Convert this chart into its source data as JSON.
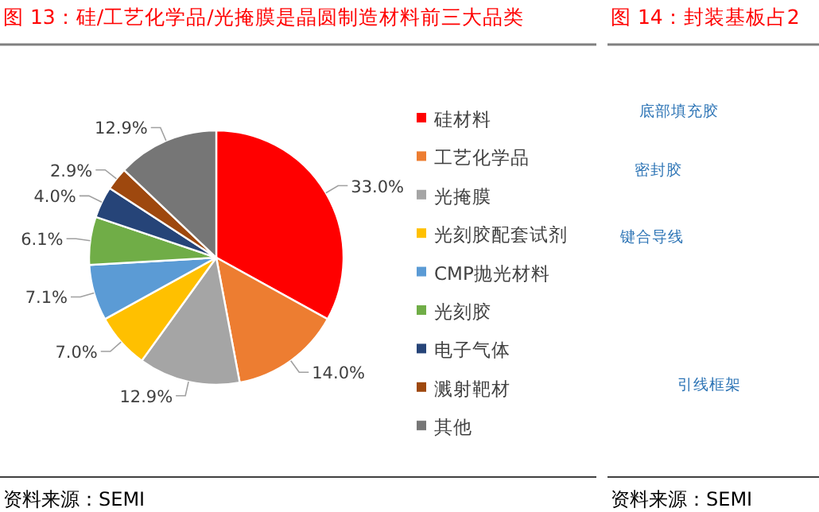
{
  "chart_data": [
    {
      "type": "pie",
      "title": "图 13：硅/工艺化学品/光掩膜是晶圆制造材料前三大品类",
      "categories": [
        "硅材料",
        "工艺化学品",
        "光掩膜",
        "光刻胶配套试剂",
        "CMP抛光材料",
        "光刻胶",
        "电子气体",
        "溅射靶材",
        "其他"
      ],
      "values": [
        33.0,
        14.0,
        12.9,
        7.0,
        7.1,
        6.1,
        4.0,
        2.9,
        12.9
      ],
      "colors": [
        "#ff0000",
        "#ed7d31",
        "#a5a5a5",
        "#ffc000",
        "#5b9bd5",
        "#70ad47",
        "#264478",
        "#9e480e",
        "#767676"
      ],
      "value_labels": [
        "33.0%",
        "14.0%",
        "12.9%",
        "7.0%",
        "7.1%",
        "6.1%",
        "4.0%",
        "2.9%",
        "12.9%"
      ],
      "legend": "right",
      "annotations": [
        "资料来源：SEMI"
      ]
    },
    {
      "type": "other",
      "title": "图 14：封装基板占2",
      "annotations": [
        "底部填充胶",
        "密封胶",
        "键合导线",
        "引线框架",
        "资料来源：SEMI"
      ]
    }
  ]
}
